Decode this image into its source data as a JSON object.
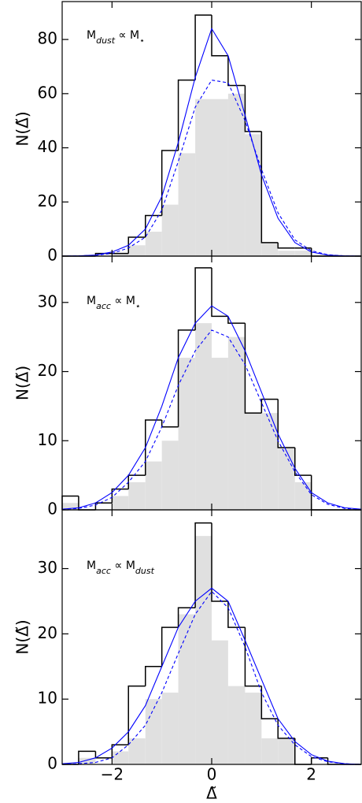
{
  "chart_data": [
    {
      "type": "histogram",
      "annotation": [
        "M",
        "dust",
        " ∝ M",
        "⋆"
      ],
      "bins": [
        -3,
        -2.67,
        -2.33,
        -2,
        -1.67,
        -1.33,
        -1,
        -0.67,
        -0.33,
        0,
        0.33,
        0.67,
        1,
        1.33,
        1.67,
        2,
        2.33,
        2.67,
        3
      ],
      "values": [
        0,
        0,
        1,
        1,
        7,
        15,
        39,
        65,
        89,
        74,
        63,
        46,
        5,
        3,
        3,
        0,
        0,
        0
      ],
      "fill_values": [
        0,
        0,
        0,
        1,
        4,
        9,
        19,
        38,
        58,
        58,
        60,
        45,
        5,
        2,
        2,
        0,
        0,
        0
      ],
      "hist_color": "#000000",
      "fill_color": "#e0e0e0",
      "line_x": [
        -3,
        -2.67,
        -2.33,
        -2,
        -1.67,
        -1.33,
        -1,
        -0.67,
        -0.33,
        0,
        0.33,
        0.67,
        1,
        1.33,
        1.67,
        2,
        2.33,
        2.67,
        3
      ],
      "lines": [
        {
          "color": "#0000ff",
          "style": "solid",
          "values": [
            0,
            0.1,
            0.4,
            1.5,
            4,
            10,
            22,
            42,
            66,
            84,
            74,
            52,
            30,
            14,
            5,
            1.5,
            0.4,
            0.1,
            0
          ]
        },
        {
          "color": "#0000ff",
          "style": "dashed",
          "values": [
            0,
            0.1,
            0.3,
            1,
            3,
            7,
            17,
            35,
            55,
            65,
            64,
            50,
            32,
            16,
            6,
            2,
            0.5,
            0.1,
            0
          ]
        }
      ],
      "xlim": [
        -3,
        3
      ],
      "xticks": [
        -2,
        0,
        2
      ],
      "ylim": [
        0,
        94
      ],
      "yticks": [
        0,
        20,
        40,
        60,
        80
      ],
      "ylabel": "N(Δ̃)"
    },
    {
      "type": "histogram",
      "annotation": [
        "M",
        "acc",
        " ∝ M",
        "⋆"
      ],
      "bins": [
        -3,
        -2.67,
        -2.33,
        -2,
        -1.67,
        -1.33,
        -1,
        -0.67,
        -0.33,
        0,
        0.33,
        0.67,
        1,
        1.33,
        1.67,
        2,
        2.33,
        2.67,
        3
      ],
      "values": [
        2,
        0,
        1,
        3,
        5,
        13,
        12,
        26,
        35,
        28,
        27,
        14,
        16,
        9,
        5,
        0,
        0,
        0
      ],
      "fill_values": [
        1,
        0,
        0,
        2,
        4,
        7,
        10,
        22,
        27,
        22,
        25,
        14,
        14,
        9,
        4,
        0,
        0,
        0
      ],
      "hist_color": "#000000",
      "fill_color": "#e0e0e0",
      "line_x": [
        -3,
        -2.67,
        -2.33,
        -2,
        -1.67,
        -1.33,
        -1,
        -0.67,
        -0.33,
        0,
        0.33,
        0.67,
        1,
        1.33,
        1.67,
        2,
        2.33,
        2.67,
        3
      ],
      "lines": [
        {
          "color": "#0000ff",
          "style": "solid",
          "values": [
            0.1,
            0.3,
            1,
            2.5,
            5,
            9,
            15,
            22,
            27,
            29.5,
            28,
            23,
            17,
            11,
            6,
            2.5,
            1,
            0.3,
            0.1
          ]
        },
        {
          "color": "#0000ff",
          "style": "dashed",
          "values": [
            0.1,
            0.2,
            0.7,
            1.8,
            4,
            7,
            12,
            18,
            23,
            26,
            25,
            21,
            15.5,
            10,
            5.5,
            2.2,
            0.8,
            0.2,
            0.1
          ]
        }
      ],
      "xlim": [
        -3,
        3
      ],
      "xticks": [
        -2,
        0,
        2
      ],
      "ylim": [
        0,
        36.7
      ],
      "yticks": [
        0,
        10,
        20,
        30
      ],
      "ylabel": "N(Δ̃)"
    },
    {
      "type": "histogram",
      "annotation": [
        "M",
        "acc",
        " ∝ M",
        "dust"
      ],
      "bins": [
        -3,
        -2.67,
        -2.33,
        -2,
        -1.67,
        -1.33,
        -1,
        -0.67,
        -0.33,
        0,
        0.33,
        0.67,
        1,
        1.33,
        1.67,
        2,
        2.33,
        2.67,
        3
      ],
      "values": [
        0,
        2,
        1,
        3,
        12,
        15,
        21,
        24,
        37,
        25,
        21,
        12,
        7,
        4,
        0,
        1,
        0,
        0
      ],
      "fill_values": [
        0,
        1,
        0,
        2,
        4,
        10,
        11,
        23,
        35,
        19,
        12,
        11,
        4,
        4,
        0,
        0,
        0,
        0
      ],
      "hist_color": "#000000",
      "fill_color": "#e0e0e0",
      "line_x": [
        -3,
        -2.67,
        -2.33,
        -2,
        -1.67,
        -1.33,
        -1,
        -0.67,
        -0.33,
        0,
        0.33,
        0.67,
        1,
        1.33,
        1.67,
        2,
        2.33,
        2.67,
        3
      ],
      "lines": [
        {
          "color": "#0000ff",
          "style": "solid",
          "values": [
            0.1,
            0.3,
            1,
            2.5,
            5,
            9,
            15,
            21,
            25,
            27,
            25,
            19,
            13,
            7,
            3.5,
            1.5,
            0.5,
            0.1,
            0
          ]
        },
        {
          "color": "#0000ff",
          "style": "dashed",
          "values": [
            0,
            0.1,
            0.3,
            1,
            3,
            6,
            11,
            17,
            23,
            26.5,
            24,
            18,
            11,
            6,
            3,
            1.2,
            0.4,
            0.1,
            0
          ]
        }
      ],
      "xlim": [
        -3,
        3
      ],
      "xticks": [
        {
          "value": -2,
          "label": "−2"
        },
        0,
        2
      ],
      "ylim": [
        0,
        39
      ],
      "yticks": [
        0,
        10,
        20,
        30
      ],
      "xlabel": "Δ̃",
      "ylabel": "N(Δ̃)"
    }
  ]
}
